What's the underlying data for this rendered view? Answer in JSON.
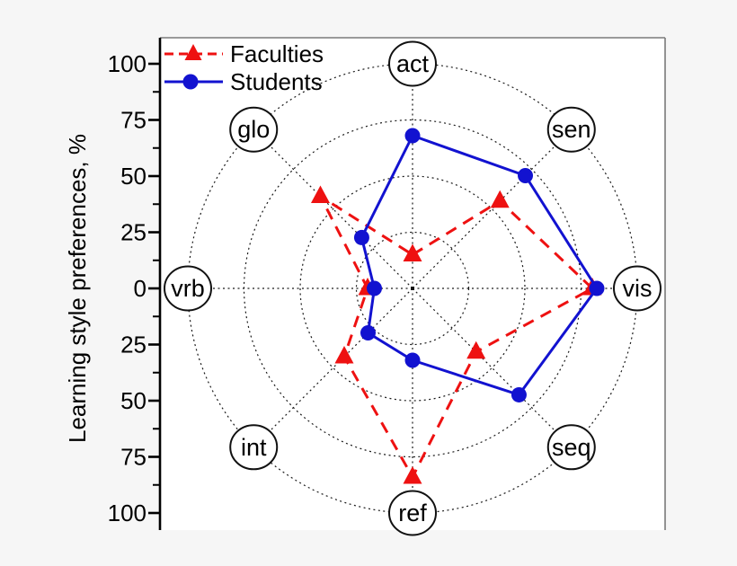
{
  "figure": {
    "y_axis_title": "Learning style preferences, %",
    "background": "#f6f6f6",
    "plot_background": "#ffffff"
  },
  "legend": {
    "position": "top-left",
    "items": [
      {
        "label": "Faculties",
        "color": "#ee1111",
        "line": "dashed",
        "marker": "triangle"
      },
      {
        "label": "Students",
        "color": "#1212d0",
        "line": "solid",
        "marker": "circle"
      }
    ]
  },
  "chart_data": {
    "type": "radar",
    "title": "",
    "ylabel": "Learning style preferences, %",
    "unit": "%",
    "categories": [
      "act",
      "sen",
      "vis",
      "seq",
      "ref",
      "int",
      "vrb",
      "glo"
    ],
    "angles_deg": [
      90,
      45,
      0,
      -45,
      -90,
      -135,
      180,
      135
    ],
    "series": [
      {
        "name": "Faculties",
        "color": "#ee1111",
        "line_style": "dashed",
        "marker": "triangle",
        "values": [
          15,
          55,
          80,
          40,
          84,
          43,
          20,
          58
        ]
      },
      {
        "name": "Students",
        "color": "#1212d0",
        "line_style": "solid",
        "marker": "circle",
        "values": [
          68,
          71,
          82,
          67,
          32,
          28,
          17,
          32
        ]
      }
    ],
    "radial_axis": {
      "min": 0,
      "max": 100,
      "major_ticks": [
        0,
        25,
        50,
        75,
        100
      ],
      "minor_step": 12.5,
      "tick_labels": [
        "100",
        "75",
        "50",
        "25",
        "0",
        "25",
        "50",
        "75",
        "100"
      ],
      "rings": [
        25,
        50,
        75,
        100
      ],
      "grid": "dotted"
    }
  }
}
